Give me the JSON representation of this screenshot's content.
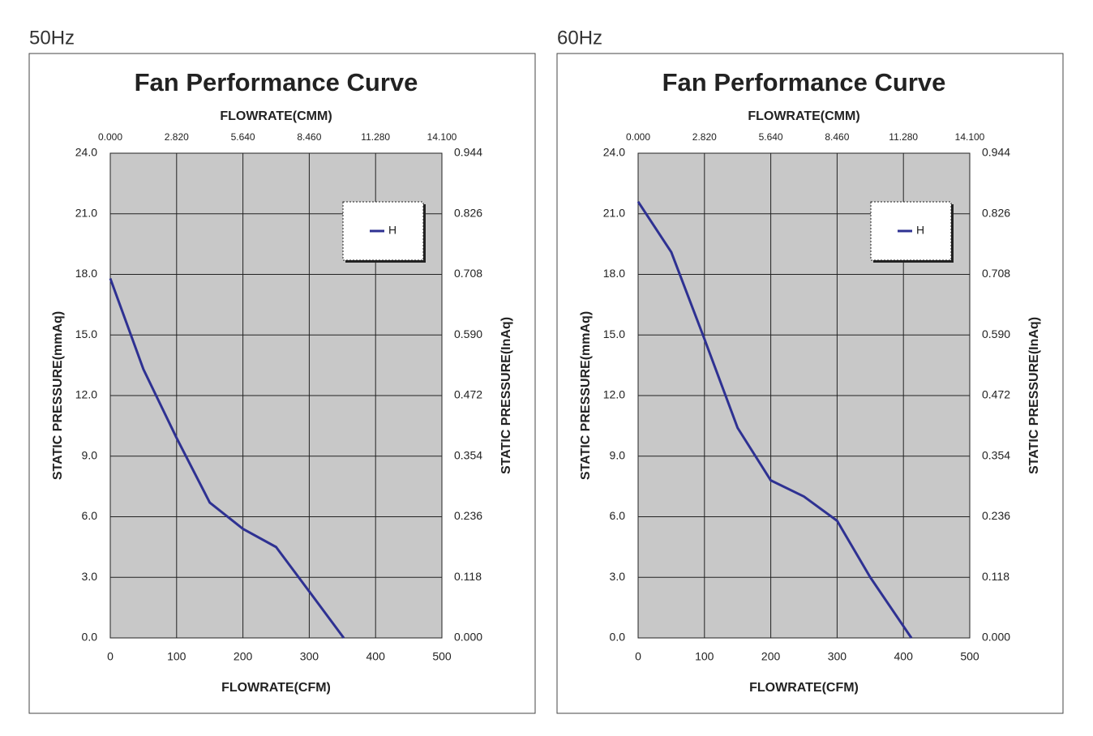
{
  "chart_data": [
    {
      "type": "line",
      "heading": "50Hz",
      "title": "Fan Performance Curve",
      "xlabel": "FLOWRATE(CFM)",
      "x2label": "FLOWRATE(CMM)",
      "ylabel": "STATIC PRESSURE(mmAq)",
      "y2label": "STATIC PRESSURE(InAq)",
      "x": [
        0,
        50,
        100,
        150,
        200,
        250,
        300,
        352
      ],
      "series": [
        {
          "name": "H",
          "color": "#2e3192",
          "values": [
            17.8,
            13.3,
            9.9,
            6.7,
            5.4,
            4.5,
            2.3,
            0
          ]
        }
      ],
      "xlim": [
        0,
        500
      ],
      "xticks": [
        0,
        100,
        200,
        300,
        400,
        500
      ],
      "x2lim": [
        0,
        14.1
      ],
      "x2ticks": [
        {
          "value": 0,
          "label": "0.000"
        },
        {
          "value": 2.82,
          "label": "2.820"
        },
        {
          "value": 5.64,
          "label": "5.640"
        },
        {
          "value": 8.46,
          "label": "8.460"
        },
        {
          "value": 11.28,
          "label": "11.280"
        },
        {
          "value": 14.1,
          "label": "14.100"
        }
      ],
      "ylim": [
        0,
        24
      ],
      "yticks": [
        {
          "value": 0,
          "label": "0.0"
        },
        {
          "value": 3,
          "label": "3.0"
        },
        {
          "value": 6,
          "label": "6.0"
        },
        {
          "value": 9,
          "label": "9.0"
        },
        {
          "value": 12,
          "label": "12.0"
        },
        {
          "value": 15,
          "label": "15.0"
        },
        {
          "value": 18,
          "label": "18.0"
        },
        {
          "value": 21,
          "label": "21.0"
        },
        {
          "value": 24,
          "label": "24.0"
        }
      ],
      "y2lim": [
        0,
        0.944
      ],
      "y2ticks": [
        {
          "value": 0,
          "label": "0.000"
        },
        {
          "value": 0.118,
          "label": "0.118"
        },
        {
          "value": 0.236,
          "label": "0.236"
        },
        {
          "value": 0.354,
          "label": "0.354"
        },
        {
          "value": 0.472,
          "label": "0.472"
        },
        {
          "value": 0.59,
          "label": "0.590"
        },
        {
          "value": 0.708,
          "label": "0.708"
        },
        {
          "value": 0.826,
          "label": "0.826"
        },
        {
          "value": 0.944,
          "label": "0.944"
        }
      ],
      "grid": true,
      "legend": "upper right"
    },
    {
      "type": "line",
      "heading": "60Hz",
      "title": "Fan Performance Curve",
      "xlabel": "FLOWRATE(CFM)",
      "x2label": "FLOWRATE(CMM)",
      "ylabel": "STATIC PRESSURE(mmAq)",
      "y2label": "STATIC PRESSURE(InAq)",
      "x": [
        0,
        50,
        100,
        150,
        200,
        250,
        300,
        350,
        412
      ],
      "series": [
        {
          "name": "H",
          "color": "#2e3192",
          "values": [
            21.6,
            19.1,
            14.8,
            10.4,
            7.8,
            7.0,
            5.8,
            3.0,
            0
          ]
        }
      ],
      "xlim": [
        0,
        500
      ],
      "xticks": [
        0,
        100,
        200,
        300,
        400,
        500
      ],
      "x2lim": [
        0,
        14.1
      ],
      "x2ticks": [
        {
          "value": 0,
          "label": "0.000"
        },
        {
          "value": 2.82,
          "label": "2.820"
        },
        {
          "value": 5.64,
          "label": "5.640"
        },
        {
          "value": 8.46,
          "label": "8.460"
        },
        {
          "value": 11.28,
          "label": "11.280"
        },
        {
          "value": 14.1,
          "label": "14.100"
        }
      ],
      "ylim": [
        0,
        24
      ],
      "yticks": [
        {
          "value": 0,
          "label": "0.0"
        },
        {
          "value": 3,
          "label": "3.0"
        },
        {
          "value": 6,
          "label": "6.0"
        },
        {
          "value": 9,
          "label": "9.0"
        },
        {
          "value": 12,
          "label": "12.0"
        },
        {
          "value": 15,
          "label": "15.0"
        },
        {
          "value": 18,
          "label": "18.0"
        },
        {
          "value": 21,
          "label": "21.0"
        },
        {
          "value": 24,
          "label": "24.0"
        }
      ],
      "y2lim": [
        0,
        0.944
      ],
      "y2ticks": [
        {
          "value": 0,
          "label": "0.000"
        },
        {
          "value": 0.118,
          "label": "0.118"
        },
        {
          "value": 0.236,
          "label": "0.236"
        },
        {
          "value": 0.354,
          "label": "0.354"
        },
        {
          "value": 0.472,
          "label": "0.472"
        },
        {
          "value": 0.59,
          "label": "0.590"
        },
        {
          "value": 0.708,
          "label": "0.708"
        },
        {
          "value": 0.826,
          "label": "0.826"
        },
        {
          "value": 0.944,
          "label": "0.944"
        }
      ],
      "grid": true,
      "legend": "upper right"
    }
  ]
}
